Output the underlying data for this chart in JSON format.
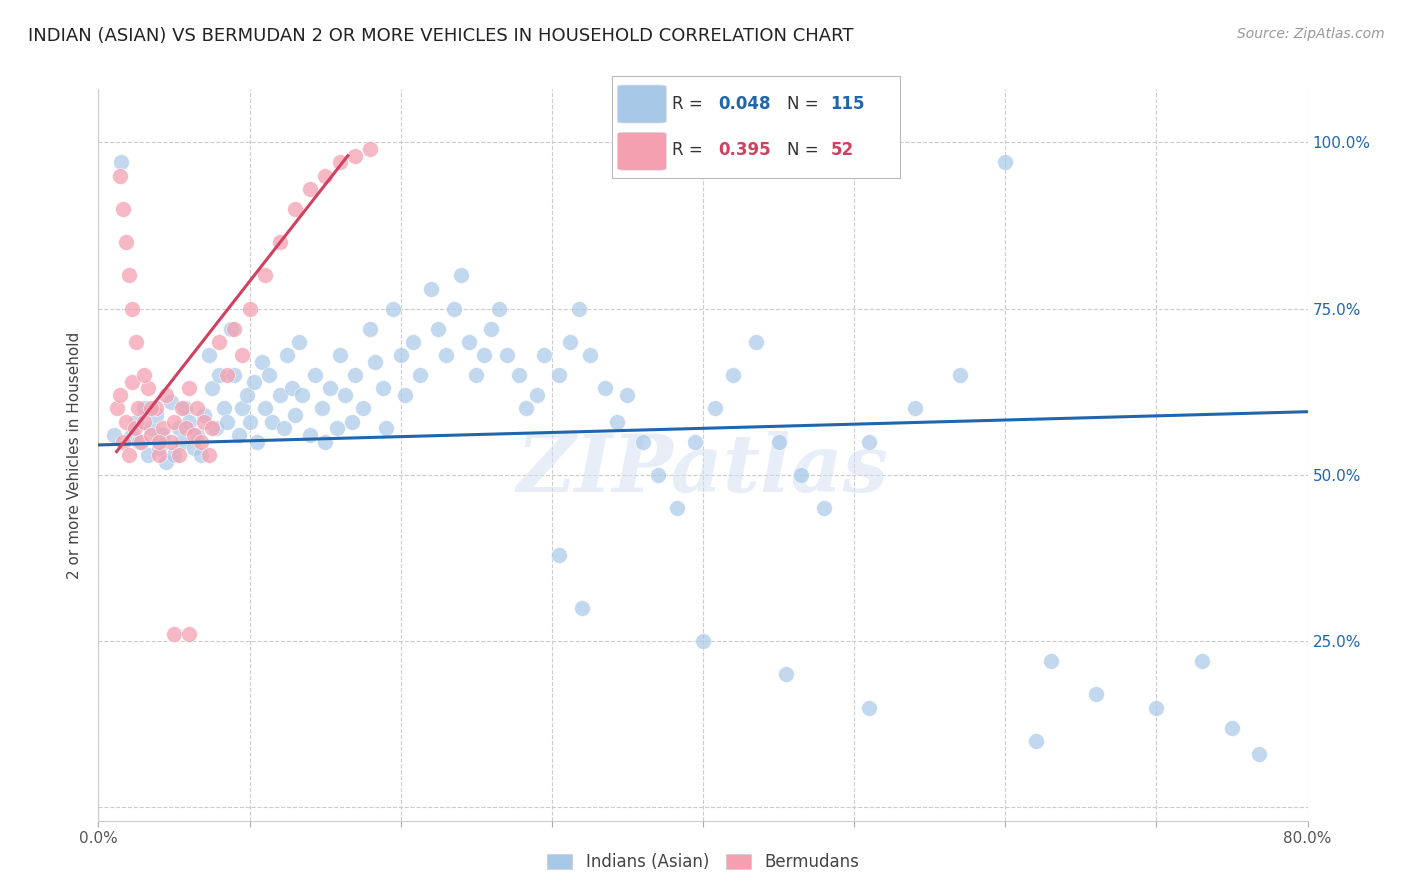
{
  "title": "INDIAN (ASIAN) VS BERMUDAN 2 OR MORE VEHICLES IN HOUSEHOLD CORRELATION CHART",
  "source": "Source: ZipAtlas.com",
  "ylabel": "2 or more Vehicles in Household",
  "xlim": [
    0.0,
    0.8
  ],
  "ylim": [
    -0.02,
    1.08
  ],
  "ytick_positions": [
    0.0,
    0.25,
    0.5,
    0.75,
    1.0
  ],
  "ytick_labels": [
    "",
    "25.0%",
    "50.0%",
    "75.0%",
    "100.0%"
  ],
  "grid_color": "#cccccc",
  "background_color": "#ffffff",
  "watermark": "ZIPatlas",
  "blue_color": "#a8c8e8",
  "pink_color": "#f4a0b0",
  "line_blue": "#2166ac",
  "line_pink": "#d04060",
  "title_fontsize": 13,
  "axis_label_fontsize": 11,
  "tick_fontsize": 11,
  "source_fontsize": 10,
  "blue_scatter_x": [
    0.01,
    0.015,
    0.022,
    0.025,
    0.027,
    0.03,
    0.033,
    0.035,
    0.038,
    0.04,
    0.042,
    0.045,
    0.048,
    0.05,
    0.053,
    0.055,
    0.057,
    0.06,
    0.063,
    0.065,
    0.068,
    0.07,
    0.073,
    0.075,
    0.078,
    0.08,
    0.083,
    0.085,
    0.088,
    0.09,
    0.093,
    0.095,
    0.098,
    0.1,
    0.103,
    0.105,
    0.108,
    0.11,
    0.113,
    0.115,
    0.12,
    0.123,
    0.125,
    0.128,
    0.13,
    0.133,
    0.135,
    0.14,
    0.143,
    0.148,
    0.15,
    0.153,
    0.158,
    0.16,
    0.163,
    0.168,
    0.17,
    0.175,
    0.18,
    0.183,
    0.188,
    0.19,
    0.195,
    0.2,
    0.203,
    0.208,
    0.213,
    0.22,
    0.225,
    0.23,
    0.235,
    0.24,
    0.245,
    0.25,
    0.255,
    0.26,
    0.265,
    0.27,
    0.278,
    0.283,
    0.29,
    0.295,
    0.305,
    0.312,
    0.318,
    0.325,
    0.335,
    0.343,
    0.35,
    0.36,
    0.37,
    0.383,
    0.395,
    0.408,
    0.42,
    0.435,
    0.45,
    0.465,
    0.48,
    0.51,
    0.54,
    0.57,
    0.6,
    0.63,
    0.66,
    0.7,
    0.73,
    0.75,
    0.768,
    0.305,
    0.32,
    0.4,
    0.455,
    0.51,
    0.62
  ],
  "blue_scatter_y": [
    0.56,
    0.97,
    0.56,
    0.58,
    0.55,
    0.6,
    0.53,
    0.57,
    0.59,
    0.54,
    0.56,
    0.52,
    0.61,
    0.53,
    0.57,
    0.55,
    0.6,
    0.58,
    0.54,
    0.56,
    0.53,
    0.59,
    0.68,
    0.63,
    0.57,
    0.65,
    0.6,
    0.58,
    0.72,
    0.65,
    0.56,
    0.6,
    0.62,
    0.58,
    0.64,
    0.55,
    0.67,
    0.6,
    0.65,
    0.58,
    0.62,
    0.57,
    0.68,
    0.63,
    0.59,
    0.7,
    0.62,
    0.56,
    0.65,
    0.6,
    0.55,
    0.63,
    0.57,
    0.68,
    0.62,
    0.58,
    0.65,
    0.6,
    0.72,
    0.67,
    0.63,
    0.57,
    0.75,
    0.68,
    0.62,
    0.7,
    0.65,
    0.78,
    0.72,
    0.68,
    0.75,
    0.8,
    0.7,
    0.65,
    0.68,
    0.72,
    0.75,
    0.68,
    0.65,
    0.6,
    0.62,
    0.68,
    0.65,
    0.7,
    0.75,
    0.68,
    0.63,
    0.58,
    0.62,
    0.55,
    0.5,
    0.45,
    0.55,
    0.6,
    0.65,
    0.7,
    0.55,
    0.5,
    0.45,
    0.55,
    0.6,
    0.65,
    0.97,
    0.22,
    0.17,
    0.15,
    0.22,
    0.12,
    0.08,
    0.38,
    0.3,
    0.25,
    0.2,
    0.15,
    0.1
  ],
  "pink_scatter_x": [
    0.012,
    0.014,
    0.016,
    0.018,
    0.02,
    0.022,
    0.024,
    0.026,
    0.028,
    0.03,
    0.033,
    0.035,
    0.038,
    0.04,
    0.043,
    0.045,
    0.048,
    0.05,
    0.053,
    0.055,
    0.058,
    0.06,
    0.063,
    0.065,
    0.068,
    0.07,
    0.073,
    0.075,
    0.08,
    0.085,
    0.09,
    0.095,
    0.1,
    0.11,
    0.12,
    0.13,
    0.14,
    0.15,
    0.16,
    0.17,
    0.18,
    0.014,
    0.016,
    0.018,
    0.02,
    0.022,
    0.025,
    0.03,
    0.035,
    0.04,
    0.05,
    0.06
  ],
  "pink_scatter_y": [
    0.6,
    0.62,
    0.55,
    0.58,
    0.53,
    0.64,
    0.57,
    0.6,
    0.55,
    0.58,
    0.63,
    0.56,
    0.6,
    0.53,
    0.57,
    0.62,
    0.55,
    0.58,
    0.53,
    0.6,
    0.57,
    0.63,
    0.56,
    0.6,
    0.55,
    0.58,
    0.53,
    0.57,
    0.7,
    0.65,
    0.72,
    0.68,
    0.75,
    0.8,
    0.85,
    0.9,
    0.93,
    0.95,
    0.97,
    0.98,
    0.99,
    0.95,
    0.9,
    0.85,
    0.8,
    0.75,
    0.7,
    0.65,
    0.6,
    0.55,
    0.26,
    0.26
  ],
  "blue_line_x": [
    0.0,
    0.8
  ],
  "blue_line_y": [
    0.545,
    0.595
  ],
  "pink_line_x": [
    0.012,
    0.165
  ],
  "pink_line_y": [
    0.535,
    0.98
  ]
}
